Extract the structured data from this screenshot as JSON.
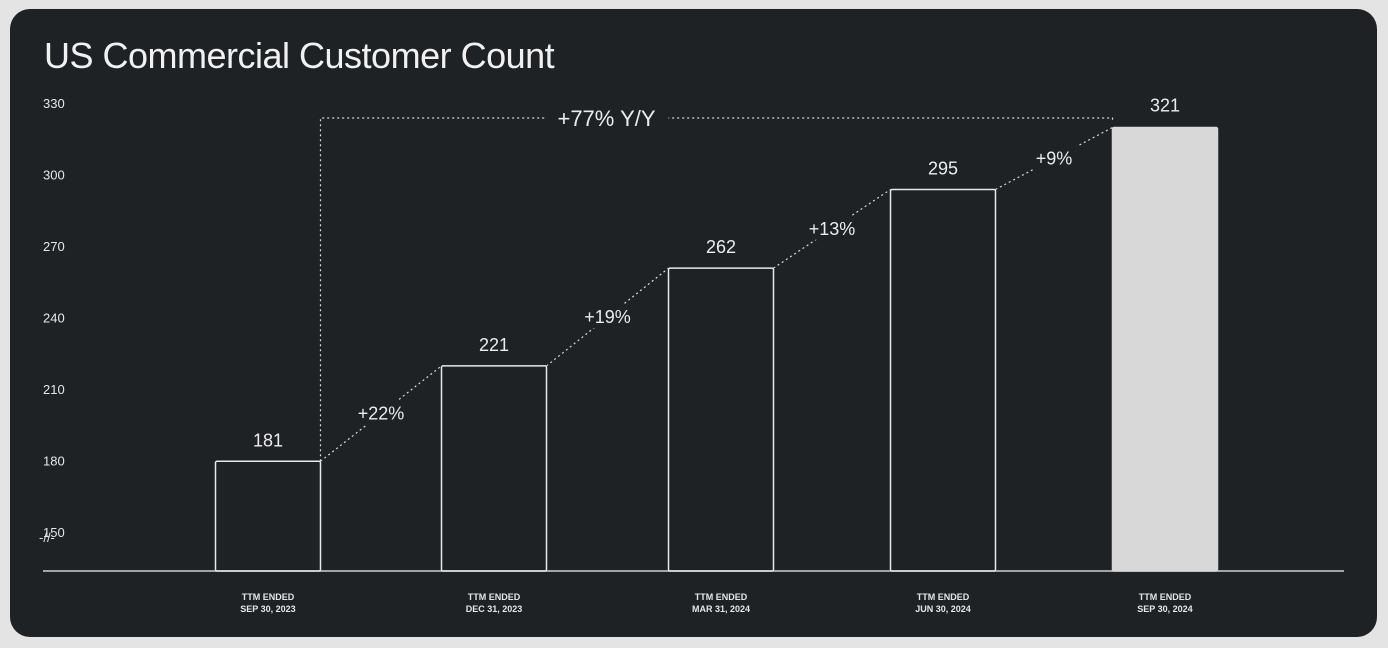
{
  "chart_data": {
    "type": "bar",
    "title": "US Commercial Customer Count",
    "xlabel": "",
    "ylabel": "",
    "ylim": [
      135,
      330
    ],
    "axis_break_label": "-//-",
    "yticks": [
      150,
      180,
      210,
      240,
      270,
      300,
      330
    ],
    "categories": [
      {
        "line1": "TTM ENDED",
        "line2": "SEP 30, 2023"
      },
      {
        "line1": "TTM ENDED",
        "line2": "DEC 31, 2023"
      },
      {
        "line1": "TTM ENDED",
        "line2": "MAR 31, 2024"
      },
      {
        "line1": "TTM ENDED",
        "line2": "JUN 30, 2024"
      },
      {
        "line1": "TTM ENDED",
        "line2": "SEP 30, 2024"
      }
    ],
    "values": [
      181,
      221,
      262,
      295,
      321
    ],
    "highlight_index": 4,
    "growth_labels": [
      "+22%",
      "+19%",
      "+13%",
      "+9%"
    ],
    "yoy_label": "+77% Y/Y",
    "colors": {
      "background": "#1f2225",
      "bar_outline": "#e8e8e8",
      "bar_highlight": "#d8d8d8",
      "text": "#ececec",
      "axis": "#cfcfcf"
    }
  }
}
